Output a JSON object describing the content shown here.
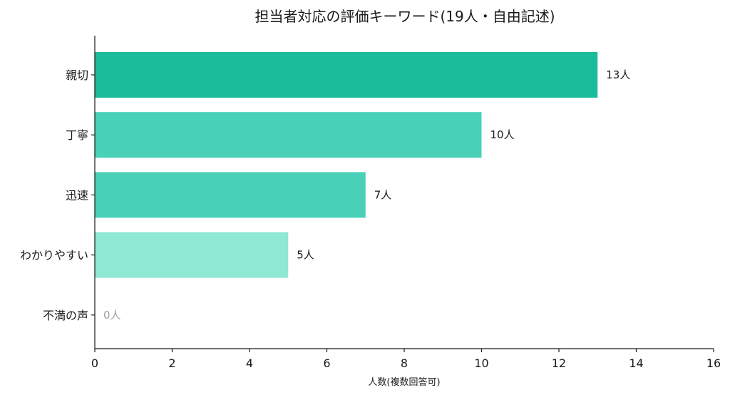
{
  "chart_data": {
    "type": "bar",
    "orientation": "horizontal",
    "title": "担当者対応の評価キーワード(19人・自由記述)",
    "xlabel": "人数(複数回答可)",
    "ylabel": "",
    "categories": [
      "親切",
      "丁寧",
      "迅速",
      "わかりやすい",
      "不満の声"
    ],
    "values": [
      13,
      10,
      7,
      5,
      0
    ],
    "data_labels": [
      "13人",
      "10人",
      "7人",
      "5人",
      "0人"
    ],
    "xlim": [
      0,
      16
    ],
    "xticks": [
      "0",
      "2",
      "4",
      "6",
      "8",
      "10",
      "12",
      "14",
      "16"
    ],
    "grid": false,
    "bar_colors": [
      "#1abc9c",
      "#48d1b8",
      "#48d1b8",
      "#8ee8d4",
      "#c8f2e8"
    ],
    "zero_label_color": "#a0a0a0"
  }
}
